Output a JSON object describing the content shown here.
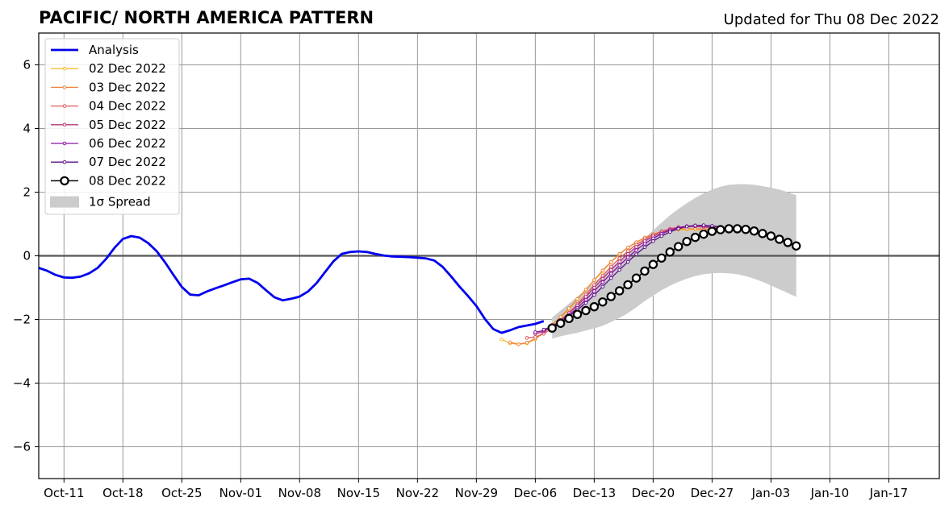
{
  "chart_data": {
    "type": "line",
    "title": "PACIFIC/ NORTH AMERICA PATTERN",
    "subtitle": "Updated for Thu 08 Dec 2022",
    "xlabel": "",
    "ylabel": "",
    "grid": true,
    "legend_position": "top-left",
    "x_axis": {
      "type": "date",
      "min": "2022-10-08",
      "max": "2023-01-23",
      "ticks": [
        "2022-10-11",
        "2022-10-18",
        "2022-10-25",
        "2022-11-01",
        "2022-11-08",
        "2022-11-15",
        "2022-11-22",
        "2022-11-29",
        "2022-12-06",
        "2022-12-13",
        "2022-12-20",
        "2022-12-27",
        "2023-01-03",
        "2023-01-10",
        "2023-01-17"
      ],
      "tick_labels": [
        "Oct-11",
        "Oct-18",
        "Oct-25",
        "Nov-01",
        "Nov-08",
        "Nov-15",
        "Nov-22",
        "Nov-29",
        "Dec-06",
        "Dec-13",
        "Dec-20",
        "Dec-27",
        "Jan-03",
        "Jan-10",
        "Jan-17"
      ]
    },
    "y_axis": {
      "min": -7,
      "max": 7,
      "ticks": [
        -6,
        -4,
        -2,
        0,
        2,
        4,
        6
      ],
      "tick_labels": [
        "−6",
        "−4",
        "−2",
        "0",
        "2",
        "4",
        "6"
      ]
    },
    "analysis": {
      "name": "Analysis",
      "color": "#0000ee",
      "points": [
        [
          "2022-10-08",
          -0.38
        ],
        [
          "2022-10-09",
          -0.47
        ],
        [
          "2022-10-10",
          -0.6
        ],
        [
          "2022-10-11",
          -0.68
        ],
        [
          "2022-10-12",
          -0.69
        ],
        [
          "2022-10-13",
          -0.65
        ],
        [
          "2022-10-14",
          -0.55
        ],
        [
          "2022-10-15",
          -0.38
        ],
        [
          "2022-10-16",
          -0.1
        ],
        [
          "2022-10-17",
          0.25
        ],
        [
          "2022-10-18",
          0.53
        ],
        [
          "2022-10-19",
          0.62
        ],
        [
          "2022-10-20",
          0.57
        ],
        [
          "2022-10-21",
          0.4
        ],
        [
          "2022-10-22",
          0.15
        ],
        [
          "2022-10-23",
          -0.2
        ],
        [
          "2022-10-24",
          -0.6
        ],
        [
          "2022-10-25",
          -0.98
        ],
        [
          "2022-10-26",
          -1.22
        ],
        [
          "2022-10-27",
          -1.24
        ],
        [
          "2022-10-28",
          -1.12
        ],
        [
          "2022-10-29",
          -1.02
        ],
        [
          "2022-10-30",
          -0.93
        ],
        [
          "2022-10-31",
          -0.83
        ],
        [
          "2022-11-01",
          -0.74
        ],
        [
          "2022-11-02",
          -0.72
        ],
        [
          "2022-11-03",
          -0.85
        ],
        [
          "2022-11-04",
          -1.08
        ],
        [
          "2022-11-05",
          -1.3
        ],
        [
          "2022-11-06",
          -1.4
        ],
        [
          "2022-11-07",
          -1.35
        ],
        [
          "2022-11-08",
          -1.28
        ],
        [
          "2022-11-09",
          -1.12
        ],
        [
          "2022-11-10",
          -0.86
        ],
        [
          "2022-11-11",
          -0.52
        ],
        [
          "2022-11-12",
          -0.18
        ],
        [
          "2022-11-13",
          0.06
        ],
        [
          "2022-11-14",
          0.12
        ],
        [
          "2022-11-15",
          0.14
        ],
        [
          "2022-11-16",
          0.12
        ],
        [
          "2022-11-17",
          0.06
        ],
        [
          "2022-11-18",
          0.01
        ],
        [
          "2022-11-19",
          -0.02
        ],
        [
          "2022-11-20",
          -0.03
        ],
        [
          "2022-11-21",
          -0.04
        ],
        [
          "2022-11-22",
          -0.06
        ],
        [
          "2022-11-23",
          -0.08
        ],
        [
          "2022-11-24",
          -0.15
        ],
        [
          "2022-11-25",
          -0.35
        ],
        [
          "2022-11-26",
          -0.65
        ],
        [
          "2022-11-27",
          -0.97
        ],
        [
          "2022-11-28",
          -1.26
        ],
        [
          "2022-11-29",
          -1.58
        ],
        [
          "2022-11-30",
          -1.98
        ],
        [
          "2022-12-01",
          -2.3
        ],
        [
          "2022-12-02",
          -2.42
        ],
        [
          "2022-12-03",
          -2.34
        ],
        [
          "2022-12-04",
          -2.24
        ],
        [
          "2022-12-05",
          -2.19
        ],
        [
          "2022-12-06",
          -2.14
        ],
        [
          "2022-12-07",
          -2.05
        ]
      ]
    },
    "forecasts": [
      {
        "name": "02 Dec 2022",
        "color": "#f9b931",
        "start": "2022-12-02",
        "values": [
          -2.63,
          -2.75,
          -2.78,
          -2.75,
          -2.62,
          -2.42,
          -2.2,
          -1.95,
          -1.68,
          -1.38,
          -1.08,
          -0.77,
          -0.48,
          -0.2,
          0.05,
          0.25,
          0.42,
          0.56,
          0.67,
          0.75,
          0.8,
          0.82,
          0.83,
          0.83,
          0.82,
          0.8
        ]
      },
      {
        "name": "03 Dec 2022",
        "color": "#f0843c",
        "start": "2022-12-03",
        "values": [
          -2.72,
          -2.78,
          -2.73,
          -2.6,
          -2.4,
          -2.17,
          -1.92,
          -1.65,
          -1.36,
          -1.06,
          -0.76,
          -0.46,
          -0.19,
          0.06,
          0.26,
          0.43,
          0.57,
          0.68,
          0.76,
          0.81,
          0.84,
          0.85,
          0.85,
          0.84,
          0.82,
          0.79
        ]
      },
      {
        "name": "04 Dec 2022",
        "color": "#dd5a5f",
        "start": "2022-12-05",
        "values": [
          -2.58,
          -2.55,
          -2.45,
          -2.27,
          -2.05,
          -1.8,
          -1.52,
          -1.22,
          -0.92,
          -0.62,
          -0.34,
          -0.08,
          0.15,
          0.35,
          0.52,
          0.66,
          0.77,
          0.85,
          0.9,
          0.92,
          0.92,
          0.9,
          0.87,
          0.83
        ]
      },
      {
        "name": "05 Dec 2022",
        "color": "#b5367a",
        "start": "2022-12-06",
        "values": [
          -2.45,
          -2.38,
          -2.22,
          -2.02,
          -1.8,
          -1.56,
          -1.29,
          -1.0,
          -0.72,
          -0.44,
          -0.18,
          0.06,
          0.28,
          0.46,
          0.61,
          0.73,
          0.82,
          0.88,
          0.92,
          0.93,
          0.92,
          0.89,
          0.85,
          0.8
        ]
      },
      {
        "name": "06 Dec 2022",
        "color": "#8c10a6",
        "start": "2022-12-06",
        "values": [
          -2.4,
          -2.35,
          -2.22,
          -2.06,
          -1.86,
          -1.64,
          -1.38,
          -1.11,
          -0.83,
          -0.56,
          -0.3,
          -0.05,
          0.18,
          0.38,
          0.55,
          0.69,
          0.8,
          0.88,
          0.93,
          0.95,
          0.95,
          0.93,
          0.89,
          0.84,
          0.77
        ]
      },
      {
        "name": "07 Dec 2022",
        "color": "#5c138a",
        "start": "2022-12-07",
        "values": [
          -2.32,
          -2.22,
          -2.08,
          -1.9,
          -1.7,
          -1.48,
          -1.23,
          -0.97,
          -0.7,
          -0.44,
          -0.19,
          0.05,
          0.27,
          0.46,
          0.62,
          0.75,
          0.85,
          0.92,
          0.95,
          0.96,
          0.94,
          0.91,
          0.86,
          0.8
        ]
      }
    ],
    "latest": {
      "name": "08 Dec 2022",
      "color": "#000000",
      "start": "2022-12-08",
      "values": [
        -2.27,
        -2.12,
        -1.97,
        -1.84,
        -1.72,
        -1.6,
        -1.45,
        -1.28,
        -1.1,
        -0.91,
        -0.7,
        -0.48,
        -0.27,
        -0.07,
        0.12,
        0.29,
        0.45,
        0.58,
        0.68,
        0.77,
        0.82,
        0.85,
        0.85,
        0.83,
        0.78,
        0.7,
        0.62,
        0.52,
        0.42,
        0.31
      ]
    },
    "spread": {
      "name": "1σ Spread",
      "color": "#cccccc",
      "start": "2022-12-08",
      "upper": [
        -1.94,
        -1.72,
        -1.5,
        -1.28,
        -1.06,
        -0.84,
        -0.62,
        -0.38,
        -0.15,
        0.08,
        0.32,
        0.56,
        0.8,
        1.04,
        1.27,
        1.47,
        1.65,
        1.82,
        1.96,
        2.08,
        2.17,
        2.23,
        2.25,
        2.25,
        2.23,
        2.19,
        2.14,
        2.08,
        2.0,
        1.9
      ],
      "lower": [
        -2.6,
        -2.53,
        -2.47,
        -2.42,
        -2.35,
        -2.28,
        -2.2,
        -2.08,
        -1.95,
        -1.8,
        -1.62,
        -1.42,
        -1.25,
        -1.08,
        -0.94,
        -0.82,
        -0.72,
        -0.64,
        -0.58,
        -0.55,
        -0.54,
        -0.55,
        -0.58,
        -0.64,
        -0.72,
        -0.82,
        -0.93,
        -1.05,
        -1.17,
        -1.29
      ]
    }
  }
}
